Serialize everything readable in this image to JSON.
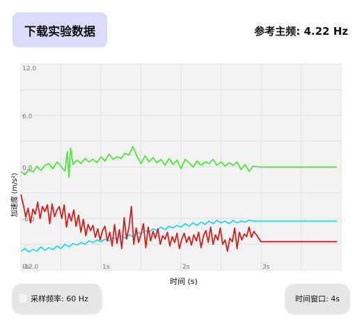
{
  "header": {
    "download_label": "下载实验数据",
    "reference_frequency": "参考主频: 4.22 Hz"
  },
  "footer": {
    "sample_rate": "采样频率: 60 Hz",
    "time_window": "时间窗口: 4s"
  },
  "colors": {
    "series_x": "#28d7f0",
    "series_y": "#4ee83a",
    "series_z": "#dc1a1a",
    "plot_bg": "#f3f3f3"
  },
  "chart_data": {
    "type": "line",
    "xlabel": "时间 (s)",
    "ylabel": "加速度 (m/s²)",
    "xlim": [
      0,
      4
    ],
    "ylim": [
      -12,
      12
    ],
    "x_ticks": [
      "0s",
      "1s",
      "2s",
      "3s"
    ],
    "y_ticks": [
      "12.0",
      "6.0",
      "0.0",
      "-6.0",
      "-12.0"
    ],
    "grid": true,
    "series": [
      {
        "color": "#4ee83a",
        "x": [
          0,
          0.05,
          0.1,
          0.15,
          0.2,
          0.25,
          0.3,
          0.35,
          0.4,
          0.45,
          0.5,
          0.55,
          0.58,
          0.6,
          0.62,
          0.65,
          0.7,
          0.75,
          0.8,
          0.85,
          0.9,
          0.95,
          1.0,
          1.05,
          1.1,
          1.15,
          1.2,
          1.25,
          1.3,
          1.35,
          1.4,
          1.45,
          1.5,
          1.55,
          1.6,
          1.65,
          1.7,
          1.75,
          1.8,
          1.85,
          1.9,
          1.95,
          2.0,
          2.05,
          2.1,
          2.15,
          2.2,
          2.25,
          2.3,
          2.35,
          2.4,
          2.45,
          2.5,
          2.55,
          2.6,
          2.65,
          2.7,
          2.75,
          2.8,
          2.85,
          2.9,
          3.0,
          3.2,
          3.4,
          3.6,
          3.8,
          3.95
        ],
        "values": [
          -0.5,
          -0.9,
          -0.3,
          -0.6,
          0.1,
          -0.4,
          0.2,
          0.4,
          -0.2,
          0.6,
          0.1,
          -0.5,
          1.8,
          -1.2,
          2.2,
          0.3,
          0.8,
          0.4,
          1.0,
          0.6,
          0.9,
          0.5,
          1.2,
          0.7,
          1.5,
          0.9,
          1.2,
          1.0,
          1.6,
          1.4,
          2.4,
          1.2,
          0.4,
          1.3,
          0.6,
          1.1,
          0.5,
          0.9,
          0.2,
          1.0,
          0.3,
          0.8,
          -0.2,
          0.9,
          0.5,
          0.0,
          0.7,
          0.2,
          0.6,
          0.4,
          0.9,
          0.2,
          0.6,
          0.1,
          0.5,
          0.2,
          0.6,
          -0.3,
          0.3,
          -0.5,
          0.1,
          0.0,
          0.0,
          0.0,
          0.0,
          0.0,
          0.0
        ]
      },
      {
        "color": "#28d7f0",
        "x": [
          0,
          0.05,
          0.1,
          0.15,
          0.2,
          0.25,
          0.3,
          0.35,
          0.4,
          0.45,
          0.5,
          0.55,
          0.6,
          0.65,
          0.7,
          0.75,
          0.8,
          0.85,
          0.9,
          0.95,
          1.0,
          1.05,
          1.1,
          1.15,
          1.2,
          1.25,
          1.3,
          1.35,
          1.4,
          1.45,
          1.5,
          1.55,
          1.6,
          1.65,
          1.7,
          1.75,
          1.8,
          1.85,
          1.9,
          1.95,
          2.0,
          2.05,
          2.1,
          2.15,
          2.2,
          2.25,
          2.3,
          2.35,
          2.4,
          2.45,
          2.5,
          2.55,
          2.6,
          2.65,
          2.7,
          2.75,
          2.8,
          2.85,
          2.9,
          3.0,
          3.2,
          3.4,
          3.6,
          3.8,
          3.95
        ],
        "values": [
          -9.8,
          -9.5,
          -9.9,
          -9.6,
          -9.8,
          -9.3,
          -9.7,
          -9.4,
          -9.6,
          -9.2,
          -9.5,
          -9.0,
          -9.3,
          -8.9,
          -9.1,
          -8.8,
          -9.0,
          -8.6,
          -8.8,
          -8.5,
          -8.7,
          -8.4,
          -8.6,
          -8.2,
          -8.4,
          -8.0,
          -8.3,
          -7.9,
          -8.1,
          -7.6,
          -7.8,
          -7.4,
          -7.6,
          -7.2,
          -7.4,
          -7.0,
          -7.3,
          -6.9,
          -7.1,
          -6.8,
          -7.0,
          -6.6,
          -6.9,
          -6.5,
          -6.8,
          -6.4,
          -6.7,
          -6.3,
          -6.6,
          -6.2,
          -6.5,
          -6.3,
          -6.6,
          -6.2,
          -6.5,
          -6.3,
          -6.4,
          -6.2,
          -6.3,
          -6.3,
          -6.3,
          -6.3,
          -6.3,
          -6.3,
          -6.3
        ]
      },
      {
        "color": "#dc1a1a",
        "x": [
          0,
          0.03,
          0.06,
          0.09,
          0.12,
          0.15,
          0.18,
          0.21,
          0.24,
          0.27,
          0.3,
          0.33,
          0.36,
          0.39,
          0.42,
          0.45,
          0.48,
          0.51,
          0.54,
          0.57,
          0.6,
          0.63,
          0.66,
          0.69,
          0.72,
          0.75,
          0.78,
          0.81,
          0.84,
          0.87,
          0.9,
          0.93,
          0.96,
          0.99,
          1.02,
          1.05,
          1.08,
          1.11,
          1.14,
          1.17,
          1.2,
          1.23,
          1.26,
          1.29,
          1.32,
          1.35,
          1.38,
          1.41,
          1.44,
          1.47,
          1.5,
          1.53,
          1.56,
          1.59,
          1.62,
          1.65,
          1.68,
          1.71,
          1.74,
          1.77,
          1.8,
          1.83,
          1.86,
          1.89,
          1.92,
          1.95,
          1.98,
          2.01,
          2.04,
          2.07,
          2.1,
          2.13,
          2.16,
          2.19,
          2.22,
          2.25,
          2.28,
          2.31,
          2.34,
          2.37,
          2.4,
          2.43,
          2.46,
          2.49,
          2.52,
          2.55,
          2.58,
          2.61,
          2.64,
          2.67,
          2.7,
          2.73,
          2.76,
          2.79,
          2.82,
          2.85,
          2.88,
          2.91,
          3.0,
          3.2,
          3.4,
          3.6,
          3.8,
          3.95
        ],
        "values": [
          -3.2,
          -4.4,
          -5.8,
          -4.8,
          -6.5,
          -4.9,
          -5.5,
          -4.1,
          -6.0,
          -4.6,
          -5.2,
          -4.4,
          -6.6,
          -4.3,
          -5.8,
          -5.0,
          -4.6,
          -6.0,
          -4.4,
          -7.0,
          -5.4,
          -6.3,
          -5.0,
          -6.9,
          -5.6,
          -7.6,
          -6.1,
          -8.0,
          -6.7,
          -7.4,
          -6.8,
          -8.2,
          -7.2,
          -8.5,
          -7.4,
          -6.9,
          -8.6,
          -7.6,
          -9.2,
          -6.7,
          -8.9,
          -7.3,
          -9.5,
          -5.9,
          -8.4,
          -7.0,
          -4.6,
          -9.0,
          -7.1,
          -8.8,
          -7.8,
          -6.6,
          -9.4,
          -7.0,
          -8.6,
          -7.5,
          -8.3,
          -7.2,
          -9.0,
          -8.0,
          -8.4,
          -7.6,
          -9.2,
          -8.1,
          -8.8,
          -7.7,
          -9.5,
          -8.4,
          -7.7,
          -8.8,
          -8.1,
          -9.1,
          -7.9,
          -8.6,
          -7.6,
          -9.4,
          -8.0,
          -7.4,
          -8.8,
          -7.0,
          -9.0,
          -7.9,
          -8.5,
          -7.1,
          -9.0,
          -8.5,
          -9.8,
          -8.3,
          -8.7,
          -7.1,
          -9.5,
          -7.6,
          -8.5,
          -7.8,
          -8.1,
          -7.0,
          -8.2,
          -7.5,
          -8.7,
          -8.7,
          -8.7,
          -8.7,
          -8.7,
          -8.7
        ]
      }
    ]
  }
}
